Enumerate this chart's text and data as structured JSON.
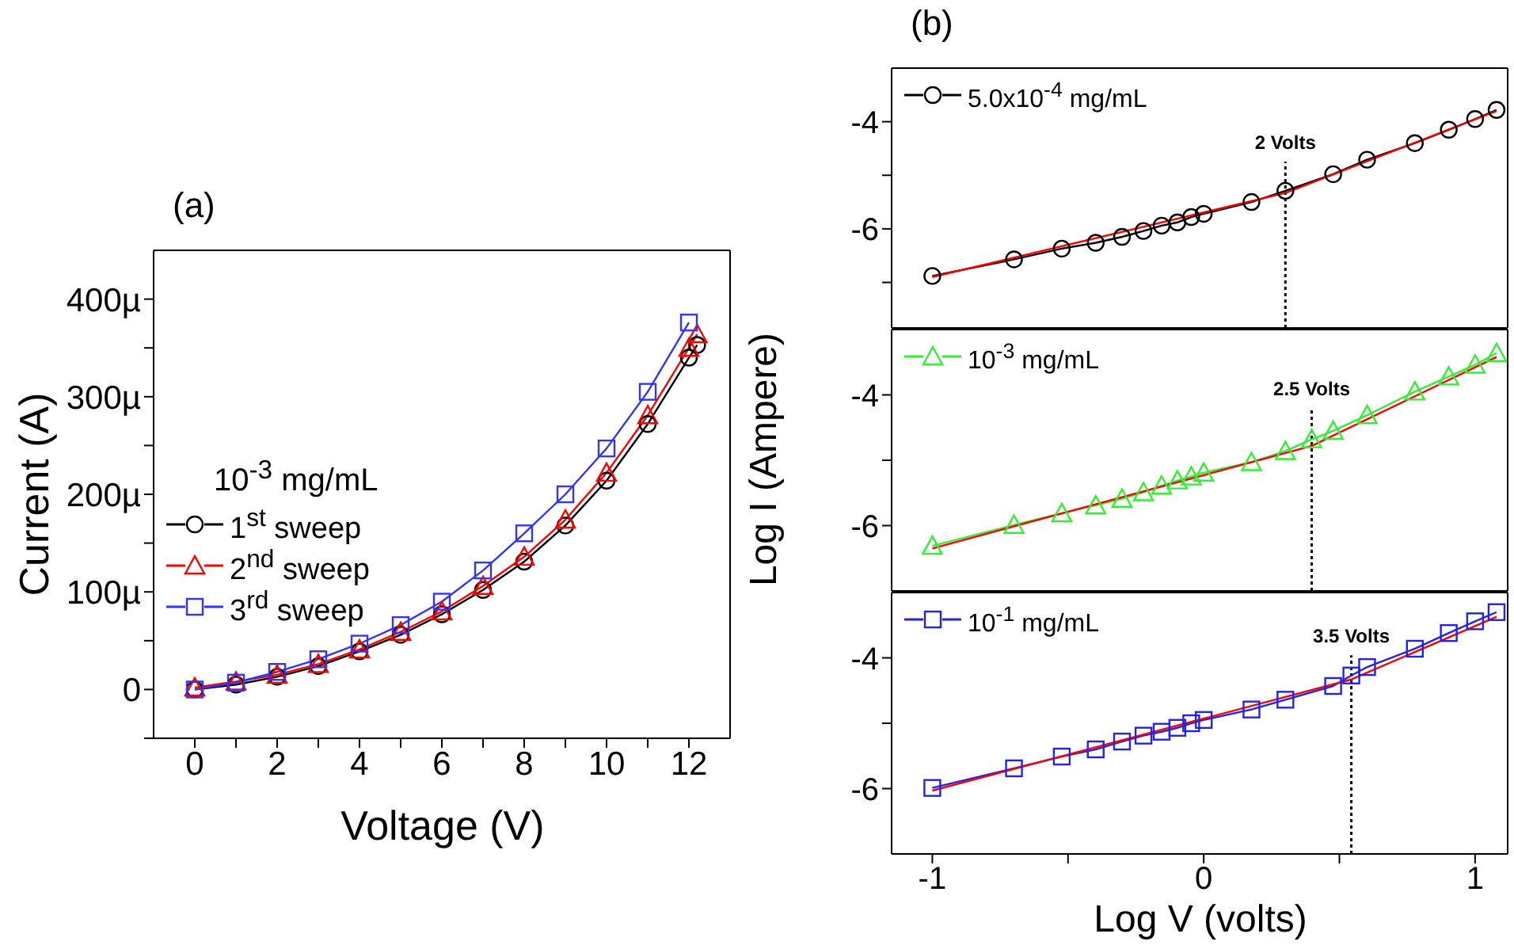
{
  "chart_data": [
    {
      "type": "line",
      "title": "(a)",
      "xlabel": "Voltage (V)",
      "ylabel": "Current (A)",
      "annotations": [
        "10$^{-3}$ mg/mL"
      ],
      "legend": "left",
      "grid": false,
      "xlim": [
        -1,
        13
      ],
      "xticks": [
        0,
        {
          "value": 1,
          "label": null
        },
        2,
        {
          "value": 3,
          "label": null
        },
        4,
        {
          "value": 5,
          "label": null
        },
        6,
        {
          "value": 7,
          "label": null
        },
        8,
        {
          "value": 9,
          "label": null
        },
        10,
        {
          "value": 11,
          "label": null
        },
        12
      ],
      "ylim": [
        -50,
        450
      ],
      "yticks": [
        {
          "value": -50,
          "label": null
        },
        0,
        {
          "value": 50,
          "label": null
        },
        {
          "value": 100,
          "label": "100µ"
        },
        {
          "value": 150,
          "label": null
        },
        {
          "value": 200,
          "label": "200µ"
        },
        {
          "value": 250,
          "label": null
        },
        {
          "value": 300,
          "label": "300µ"
        },
        {
          "value": 350,
          "label": null
        },
        {
          "value": 400,
          "label": "400µ"
        }
      ],
      "series": [
        {
          "name": "1$^{st}$ sweep",
          "color": "#000000",
          "marker": "circle",
          "x": [
            0,
            1,
            2,
            3,
            4,
            5,
            6,
            7,
            8,
            9,
            10,
            11,
            12,
            12.2
          ],
          "values": [
            0,
            5,
            13,
            24,
            39,
            56,
            77,
            102,
            131,
            168,
            214,
            272,
            340,
            353
          ]
        },
        {
          "name": "2$^{nd}$ sweep",
          "color": "#ff0000",
          "marker": "triangle",
          "x": [
            0,
            1,
            2,
            3,
            4,
            5,
            6,
            7,
            8,
            9,
            10,
            11,
            12,
            12.2
          ],
          "values": [
            2,
            8,
            15,
            26,
            41,
            59,
            80,
            106,
            136,
            174,
            222,
            281,
            350,
            364
          ]
        },
        {
          "name": "3$^{rd}$ sweep",
          "color": "#3333ff",
          "marker": "square",
          "x": [
            0,
            1,
            2,
            3,
            4,
            5,
            6,
            7,
            8,
            9,
            10,
            11,
            12
          ],
          "values": [
            0,
            7,
            18,
            31,
            47,
            66,
            90,
            122,
            160,
            200,
            247,
            305,
            376
          ]
        }
      ]
    },
    {
      "type": "line",
      "title": "(b)",
      "legend": "top left",
      "grid": false,
      "tick_labels": "y",
      "xlim": [
        -1.15,
        1.12
      ],
      "xticks": [
        -1,
        {
          "value": -0.5,
          "label": null
        },
        0,
        {
          "value": 0.5,
          "label": null
        },
        1
      ],
      "ylim": [
        -7.85,
        -3
      ],
      "yticks": [
        {
          "value": -7,
          "label": null
        },
        -6,
        {
          "value": -5,
          "label": null
        },
        -4
      ],
      "ref_lines": [
        {
          "axis": "x",
          "value": 0.301,
          "label": "2 Volts",
          "line_style": "dotted",
          "color": "#000000"
        }
      ],
      "series": [
        {
          "name": "5.0x10$^{-4}$ mg/mL",
          "color": "#000000",
          "marker": "circle",
          "x": [
            -1,
            -0.699,
            -0.523,
            -0.398,
            -0.301,
            -0.222,
            -0.155,
            -0.097,
            -0.046,
            0,
            0.176,
            0.301,
            0.477,
            0.602,
            0.778,
            0.903,
            1,
            1.079
          ],
          "values": [
            -6.88,
            -6.57,
            -6.37,
            -6.26,
            -6.15,
            -6.04,
            -5.94,
            -5.88,
            -5.78,
            -5.72,
            -5.5,
            -5.29,
            -4.98,
            -4.71,
            -4.4,
            -4.15,
            -3.95,
            -3.78
          ]
        },
        {
          "color": "#ff0000",
          "marker": "none",
          "x": [
            -1,
            0.301,
            1.079
          ],
          "values": [
            -6.9,
            -5.33,
            -3.8
          ]
        }
      ]
    },
    {
      "type": "line",
      "ylabel": "Log I (Ampere)",
      "legend": "top left",
      "grid": false,
      "tick_labels": "y",
      "xlim": [
        -1.15,
        1.12
      ],
      "xticks": [
        -1,
        {
          "value": -0.5,
          "label": null
        },
        0,
        {
          "value": 0.5,
          "label": null
        },
        1
      ],
      "ylim": [
        -7,
        -3
      ],
      "yticks": [
        -6,
        {
          "value": -5,
          "label": null
        },
        -4
      ],
      "ref_lines": [
        {
          "axis": "x",
          "value": 0.398,
          "label": "2.5 Volts",
          "line_style": "dotted",
          "color": "#000000"
        }
      ],
      "series": [
        {
          "name": "10$^{-3}$ mg/mL",
          "color": "#33ee33",
          "marker": "triangle",
          "x": [
            -1,
            -0.699,
            -0.523,
            -0.398,
            -0.301,
            -0.222,
            -0.155,
            -0.097,
            -0.046,
            0,
            0.176,
            0.301,
            0.398,
            0.477,
            0.602,
            0.778,
            0.903,
            1,
            1.079
          ],
          "values": [
            -6.31,
            -5.99,
            -5.81,
            -5.69,
            -5.59,
            -5.49,
            -5.39,
            -5.31,
            -5.25,
            -5.19,
            -5.03,
            -4.86,
            -4.68,
            -4.55,
            -4.31,
            -3.95,
            -3.72,
            -3.54,
            -3.36
          ]
        },
        {
          "color": "#ff0000",
          "marker": "none",
          "x": [
            -1,
            0.398,
            1.079
          ],
          "values": [
            -6.35,
            -4.78,
            -3.42
          ]
        }
      ]
    },
    {
      "type": "line",
      "xlabel": "Log V (volts)",
      "legend": "top left",
      "grid": false,
      "xlim": [
        -1.15,
        1.12
      ],
      "xticks": [
        -1,
        {
          "value": -0.5,
          "label": null
        },
        0,
        {
          "value": 0.5,
          "label": null
        },
        1
      ],
      "ylim": [
        -7,
        -3
      ],
      "yticks": [
        -6,
        {
          "value": -5,
          "label": null
        },
        -4
      ],
      "ref_lines": [
        {
          "axis": "x",
          "value": 0.544,
          "label": "3.5 Volts",
          "line_style": "dotted",
          "color": "#000000"
        }
      ],
      "series": [
        {
          "name": "10$^{-1}$ mg/mL",
          "color": "#2222ee",
          "marker": "square",
          "x": [
            -1,
            -0.699,
            -0.523,
            -0.398,
            -0.301,
            -0.222,
            -0.155,
            -0.097,
            -0.046,
            0,
            0.176,
            0.301,
            0.477,
            0.544,
            0.602,
            0.778,
            0.903,
            1,
            1.079
          ],
          "values": [
            -5.99,
            -5.69,
            -5.51,
            -5.4,
            -5.28,
            -5.19,
            -5.13,
            -5.07,
            -5.0,
            -4.95,
            -4.79,
            -4.64,
            -4.43,
            -4.27,
            -4.14,
            -3.86,
            -3.62,
            -3.44,
            -3.3
          ]
        },
        {
          "color": "#ff0000",
          "marker": "none",
          "x": [
            -1,
            0.544,
            1.079
          ],
          "values": [
            -6.03,
            -4.33,
            -3.37
          ]
        }
      ]
    }
  ]
}
